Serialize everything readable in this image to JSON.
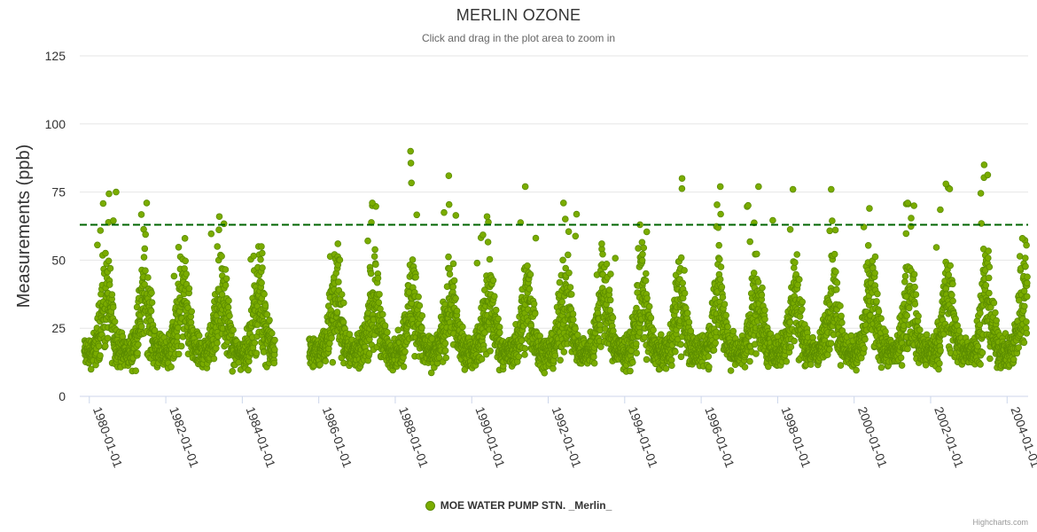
{
  "chart_data": {
    "type": "scatter",
    "title": "MERLIN OZONE",
    "subtitle": "Click and drag in the plot area to zoom in",
    "xlabel": "",
    "ylabel": "Measurements (ppb)",
    "ylim": [
      0,
      125
    ],
    "y_ticks": [
      "0",
      "25",
      "50",
      "75",
      "100",
      "125"
    ],
    "x_range": [
      1979.75,
      2004.55
    ],
    "x_ticks": [
      "1980-01-01",
      "1982-01-01",
      "1984-01-01",
      "1986-01-01",
      "1988-01-01",
      "1990-01-01",
      "1992-01-01",
      "1994-01-01",
      "1996-01-01",
      "1998-01-01",
      "2000-01-01",
      "2002-01-01",
      "2004-01-01"
    ],
    "reference_line": {
      "value": 63,
      "style": "dashed",
      "color": "#006400"
    },
    "series": [
      {
        "name": "MOE WATER PUMP STN. _Merlin_",
        "color": "#7aac00",
        "description": "Daily ozone measurements with seasonal cycle; summer peaks ~45-90 ppb, winter lows ~0-10 ppb",
        "data_gap": [
          1984.85,
          1985.75
        ],
        "annual_peaks": [
          {
            "x": 1980.7,
            "y": 75
          },
          {
            "x": 1981.5,
            "y": 71
          },
          {
            "x": 1982.5,
            "y": 58
          },
          {
            "x": 1983.4,
            "y": 66
          },
          {
            "x": 1984.5,
            "y": 55
          },
          {
            "x": 1986.5,
            "y": 56
          },
          {
            "x": 1987.4,
            "y": 71
          },
          {
            "x": 1988.4,
            "y": 90
          },
          {
            "x": 1989.4,
            "y": 81
          },
          {
            "x": 1990.4,
            "y": 66
          },
          {
            "x": 1991.4,
            "y": 77
          },
          {
            "x": 1992.4,
            "y": 71
          },
          {
            "x": 1993.4,
            "y": 56
          },
          {
            "x": 1994.4,
            "y": 63
          },
          {
            "x": 1995.5,
            "y": 80
          },
          {
            "x": 1996.5,
            "y": 77
          },
          {
            "x": 1997.5,
            "y": 77
          },
          {
            "x": 1998.4,
            "y": 76
          },
          {
            "x": 1999.4,
            "y": 76
          },
          {
            "x": 2000.4,
            "y": 69
          },
          {
            "x": 2001.4,
            "y": 71
          },
          {
            "x": 2002.4,
            "y": 78
          },
          {
            "x": 2003.4,
            "y": 85
          },
          {
            "x": 2004.4,
            "y": 58
          }
        ]
      }
    ],
    "legend_position": "bottom-center"
  },
  "credits": "Highcharts.com"
}
